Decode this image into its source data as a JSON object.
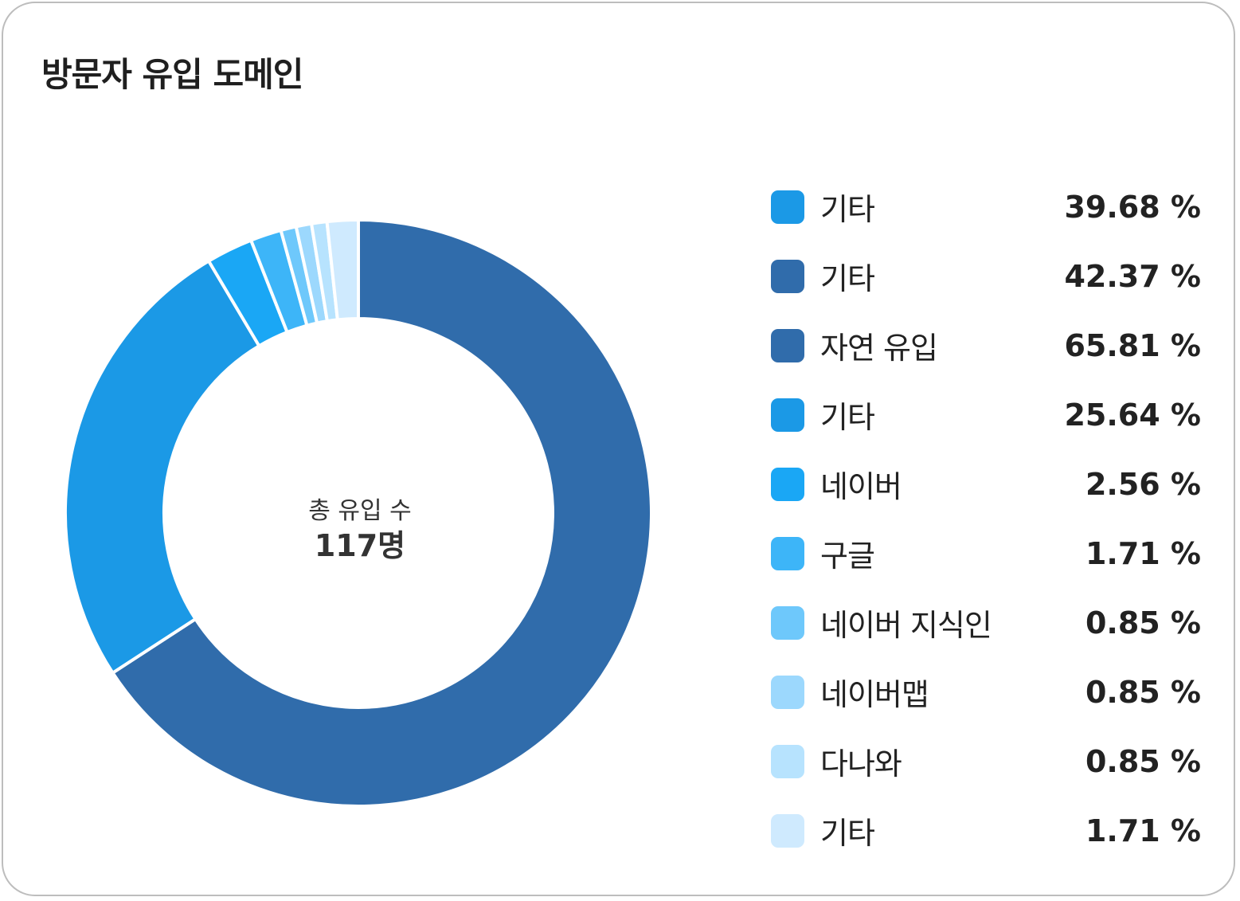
{
  "card": {
    "title": "방문자 유입 도메인"
  },
  "center": {
    "label": "총 유입 수",
    "total": "117명"
  },
  "chart_data": {
    "type": "pie",
    "title": "방문자 유입 도메인",
    "legend_position": "right",
    "categories": [
      "기타",
      "기타",
      "자연 유입",
      "기타",
      "네이버",
      "구글",
      "네이버 지식인",
      "네이버맵",
      "다나와",
      "기타"
    ],
    "values": [
      39.68,
      42.37,
      65.81,
      25.64,
      2.56,
      1.71,
      0.85,
      0.85,
      0.85,
      1.71
    ],
    "value_labels": [
      "39.68 %",
      "42.37 %",
      "65.81 %",
      "25.64 %",
      "2.56 %",
      "1.71 %",
      "0.85 %",
      "0.85 %",
      "0.85 %",
      "1.71 %"
    ],
    "colors": [
      "#1b99e6",
      "#306cab",
      "#306cab",
      "#1b99e6",
      "#1aa7f5",
      "#3db5f8",
      "#6ec8fb",
      "#9cd8fd",
      "#b7e3fe",
      "#cfeafe"
    ],
    "donut_order": [
      2,
      3,
      4,
      5,
      6,
      7,
      8,
      9
    ]
  }
}
